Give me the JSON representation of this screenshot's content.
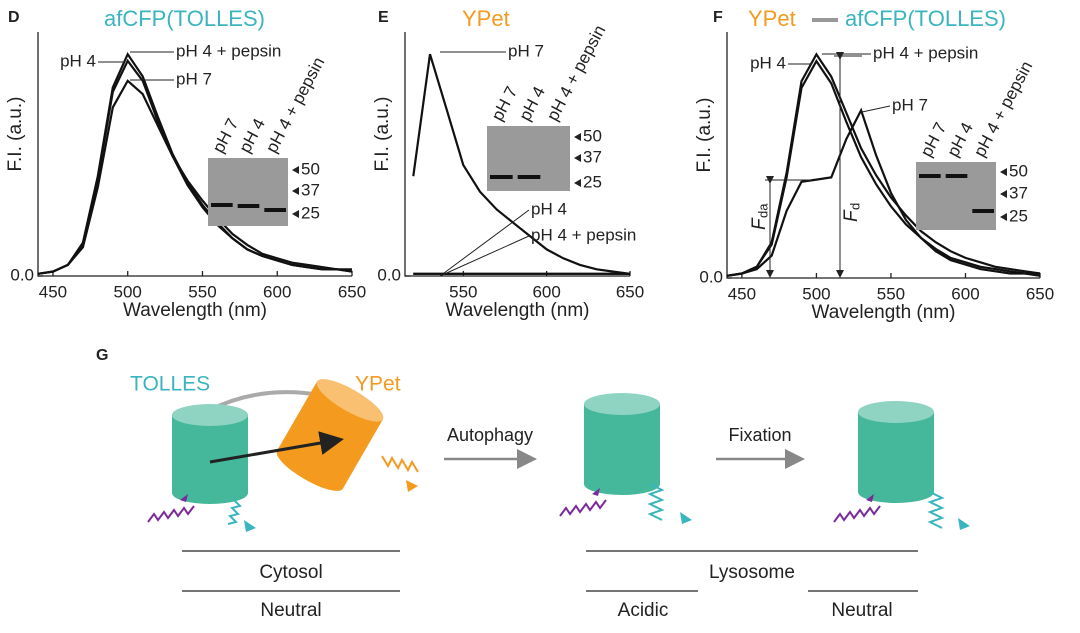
{
  "chart_data": [
    {
      "type": "line",
      "panel": "D",
      "title": "afCFP(TOLLES)",
      "title_color": "#3ab5bf",
      "x_label": "Wavelength (nm)",
      "y_label": "F.I. (a.u.)",
      "xlim": [
        440,
        650
      ],
      "xticks": [
        450,
        500,
        550,
        600,
        650
      ],
      "ylim": [
        0,
        1.1
      ],
      "yticks": [
        {
          "value": 0,
          "label": "0.0"
        }
      ],
      "x": [
        440,
        450,
        460,
        470,
        480,
        490,
        500,
        510,
        520,
        530,
        540,
        550,
        560,
        570,
        580,
        590,
        600,
        610,
        620,
        630,
        640,
        650
      ],
      "series": [
        {
          "name": "pH 4 + pepsin",
          "color": "#111",
          "values": [
            0.01,
            0.02,
            0.05,
            0.15,
            0.45,
            0.85,
            1.0,
            0.9,
            0.72,
            0.55,
            0.42,
            0.32,
            0.24,
            0.17,
            0.12,
            0.09,
            0.07,
            0.05,
            0.04,
            0.03,
            0.03,
            0.02
          ]
        },
        {
          "name": "pH 4",
          "color": "#111",
          "values": [
            0.01,
            0.02,
            0.05,
            0.14,
            0.44,
            0.83,
            0.97,
            0.88,
            0.7,
            0.54,
            0.41,
            0.31,
            0.23,
            0.17,
            0.12,
            0.09,
            0.07,
            0.05,
            0.04,
            0.03,
            0.03,
            0.02
          ]
        },
        {
          "name": "pH 7",
          "color": "#111",
          "values": [
            0.01,
            0.02,
            0.05,
            0.13,
            0.4,
            0.76,
            0.88,
            0.82,
            0.68,
            0.54,
            0.43,
            0.34,
            0.26,
            0.19,
            0.14,
            0.1,
            0.08,
            0.06,
            0.05,
            0.04,
            0.03,
            0.03
          ]
        }
      ],
      "inset": {
        "lanes": [
          "pH 7",
          "pH 4",
          "pH 4 + pepsin"
        ],
        "markers": [
          "50",
          "37",
          "25"
        ]
      }
    },
    {
      "type": "line",
      "panel": "E",
      "title": "YPet",
      "title_color": "#f39a1f",
      "x_label": "Wavelength (nm)",
      "y_label": "F.I. (a.u.)",
      "xlim": [
        515,
        650
      ],
      "xticks": [
        550,
        600,
        650
      ],
      "ylim": [
        0,
        1.1
      ],
      "yticks": [
        {
          "value": 0,
          "label": "0.0"
        }
      ],
      "x": [
        520,
        530,
        540,
        550,
        560,
        570,
        580,
        590,
        600,
        610,
        620,
        630,
        640,
        650
      ],
      "series": [
        {
          "name": "pH 7",
          "color": "#111",
          "values": [
            0.45,
            1.0,
            0.75,
            0.5,
            0.38,
            0.3,
            0.24,
            0.18,
            0.12,
            0.08,
            0.05,
            0.03,
            0.02,
            0.01
          ]
        },
        {
          "name": "pH 4",
          "color": "#111",
          "values": [
            0.01,
            0.01,
            0.01,
            0.01,
            0.01,
            0.01,
            0.01,
            0.01,
            0.01,
            0.01,
            0.01,
            0.01,
            0.01,
            0.01
          ]
        },
        {
          "name": "pH 4 + pepsin",
          "color": "#111",
          "values": [
            0.01,
            0.01,
            0.01,
            0.01,
            0.01,
            0.01,
            0.01,
            0.01,
            0.01,
            0.01,
            0.01,
            0.01,
            0.01,
            0.01
          ]
        }
      ],
      "inset": {
        "lanes": [
          "pH 7",
          "pH 4",
          "pH 4 + pepsin"
        ],
        "markers": [
          "50",
          "37",
          "25"
        ]
      }
    },
    {
      "type": "line",
      "panel": "F",
      "title": [
        "YPet",
        "afCFP(TOLLES)"
      ],
      "title_colors": [
        "#f39a1f",
        "#3ab5bf"
      ],
      "x_label": "Wavelength (nm)",
      "y_label": "F.I. (a.u.)",
      "xlim": [
        440,
        650
      ],
      "xticks": [
        450,
        500,
        550,
        600,
        650
      ],
      "ylim": [
        0,
        1.1
      ],
      "yticks": [
        {
          "value": 0,
          "label": "0.0"
        }
      ],
      "x": [
        440,
        450,
        460,
        470,
        480,
        490,
        500,
        510,
        520,
        530,
        540,
        550,
        560,
        570,
        580,
        590,
        600,
        610,
        620,
        630,
        640,
        650
      ],
      "series": [
        {
          "name": "pH 4 + pepsin",
          "color": "#111",
          "values": [
            0.01,
            0.02,
            0.05,
            0.16,
            0.47,
            0.88,
            1.0,
            0.9,
            0.74,
            0.58,
            0.46,
            0.36,
            0.28,
            0.21,
            0.16,
            0.12,
            0.09,
            0.07,
            0.05,
            0.04,
            0.03,
            0.02
          ]
        },
        {
          "name": "pH 4",
          "color": "#111",
          "values": [
            0.01,
            0.02,
            0.05,
            0.15,
            0.45,
            0.85,
            0.97,
            0.87,
            0.7,
            0.54,
            0.42,
            0.32,
            0.24,
            0.18,
            0.13,
            0.09,
            0.07,
            0.05,
            0.04,
            0.03,
            0.02,
            0.02
          ]
        },
        {
          "name": "pH 7",
          "color": "#111",
          "values": [
            0.01,
            0.02,
            0.04,
            0.1,
            0.3,
            0.43,
            0.44,
            0.45,
            0.62,
            0.75,
            0.55,
            0.38,
            0.26,
            0.18,
            0.12,
            0.08,
            0.06,
            0.04,
            0.03,
            0.02,
            0.02,
            0.01
          ]
        }
      ],
      "annotations": [
        {
          "main": "F",
          "sub": "da"
        },
        {
          "main": "F",
          "sub": "d"
        }
      ],
      "inset": {
        "lanes": [
          "pH 7",
          "pH 4",
          "pH 4 + pepsin"
        ],
        "markers": [
          "50",
          "37",
          "25"
        ]
      }
    }
  ],
  "diagram": {
    "panel": "G",
    "donor": "TOLLES",
    "acceptor": "YPet",
    "step1": "Autophagy",
    "step2": "Fixation",
    "cytosol": "Cytosol",
    "cytosol_ph": "Neutral",
    "lysosome": "Lysosome",
    "lysosome_ph1": "Acidic",
    "lysosome_ph2": "Neutral"
  }
}
